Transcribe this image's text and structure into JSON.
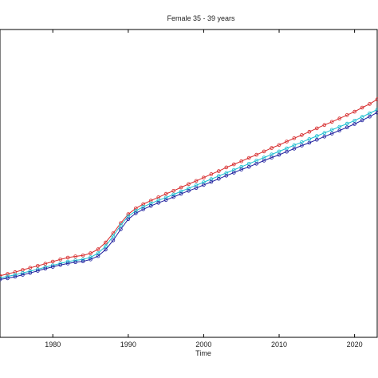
{
  "chart_data": {
    "type": "line",
    "title": "Female 35 - 39 years",
    "xlabel": "Time",
    "ylabel": "",
    "xlim": [
      1973,
      2023
    ],
    "ylim": [
      0,
      100
    ],
    "x_ticks": [
      1980,
      1990,
      2000,
      2010,
      2020
    ],
    "grid": false,
    "legend": "none",
    "series": [
      {
        "color": "#d62728",
        "marker": "circle",
        "x": [
          1973,
          1974,
          1975,
          1976,
          1977,
          1978,
          1979,
          1980,
          1981,
          1982,
          1983,
          1984,
          1985,
          1986,
          1987,
          1988,
          1989,
          1990,
          1991,
          1992,
          1993,
          1994,
          1995,
          1996,
          1997,
          1998,
          1999,
          2000,
          2001,
          2002,
          2003,
          2004,
          2005,
          2006,
          2007,
          2008,
          2009,
          2010,
          2011,
          2012,
          2013,
          2014,
          2015,
          2016,
          2017,
          2018,
          2019,
          2020,
          2021,
          2022,
          2023
        ],
        "values": [
          20,
          20.6,
          21.2,
          21.9,
          22.6,
          23.2,
          23.9,
          24.6,
          25.3,
          25.9,
          26.3,
          26.6,
          27.3,
          28.6,
          30.8,
          33.8,
          37.1,
          40,
          41.9,
          43.3,
          44.4,
          45.5,
          46.6,
          47.6,
          48.7,
          49.8,
          50.8,
          51.9,
          53,
          54,
          55.2,
          56.2,
          57.2,
          58.3,
          59.3,
          60.4,
          61.5,
          62.5,
          63.6,
          64.7,
          65.7,
          66.8,
          67.9,
          69,
          70,
          71.1,
          72.2,
          73.3,
          74.6,
          75.8,
          77.3
        ]
      },
      {
        "color": "#17becf",
        "marker": "circle",
        "x": [
          1973,
          1974,
          1975,
          1976,
          1977,
          1978,
          1979,
          1980,
          1981,
          1982,
          1983,
          1984,
          1985,
          1986,
          1987,
          1988,
          1989,
          1990,
          1991,
          1992,
          1993,
          1994,
          1995,
          1996,
          1997,
          1998,
          1999,
          2000,
          2001,
          2002,
          2003,
          2004,
          2005,
          2006,
          2007,
          2008,
          2009,
          2010,
          2011,
          2012,
          2013,
          2014,
          2015,
          2016,
          2017,
          2018,
          2019,
          2020,
          2021,
          2022,
          2023
        ],
        "values": [
          19.3,
          19.8,
          20.3,
          20.9,
          21.5,
          22.1,
          22.8,
          23.4,
          24,
          24.6,
          25,
          25.3,
          26,
          27.3,
          29.6,
          32.9,
          36.4,
          39.3,
          41.1,
          42.4,
          43.5,
          44.5,
          45.4,
          46.4,
          47.4,
          48.4,
          49.4,
          50.4,
          51.4,
          52.4,
          53.4,
          54.4,
          55.4,
          56.4,
          57.4,
          58.4,
          59.4,
          60.4,
          61.4,
          62.4,
          63.4,
          64.4,
          65.4,
          66.4,
          67.4,
          68.4,
          69.4,
          70.4,
          71.6,
          72.8,
          74
        ]
      },
      {
        "color": "#1f1f9e",
        "marker": "circle",
        "x": [
          1973,
          1974,
          1975,
          1976,
          1977,
          1978,
          1979,
          1980,
          1981,
          1982,
          1983,
          1984,
          1985,
          1986,
          1987,
          1988,
          1989,
          1990,
          1991,
          1992,
          1993,
          1994,
          1995,
          1996,
          1997,
          1998,
          1999,
          2000,
          2001,
          2002,
          2003,
          2004,
          2005,
          2006,
          2007,
          2008,
          2009,
          2010,
          2011,
          2012,
          2013,
          2014,
          2015,
          2016,
          2017,
          2018,
          2019,
          2020,
          2021,
          2022,
          2023
        ],
        "values": [
          18.8,
          19.2,
          19.7,
          20.3,
          20.9,
          21.6,
          22.3,
          22.9,
          23.5,
          24,
          24.4,
          24.7,
          25.3,
          26.4,
          28.5,
          31.5,
          35.1,
          38.4,
          40.3,
          41.6,
          42.7,
          43.7,
          44.6,
          45.6,
          46.6,
          47.6,
          48.5,
          49.5,
          50.5,
          51.5,
          52.5,
          53.5,
          54.5,
          55.4,
          56.4,
          57.4,
          58.4,
          59.3,
          60.3,
          61.3,
          62.3,
          63.2,
          64.2,
          65.2,
          66.2,
          67.2,
          68.2,
          69.3,
          70.5,
          71.7,
          73
        ]
      }
    ]
  }
}
